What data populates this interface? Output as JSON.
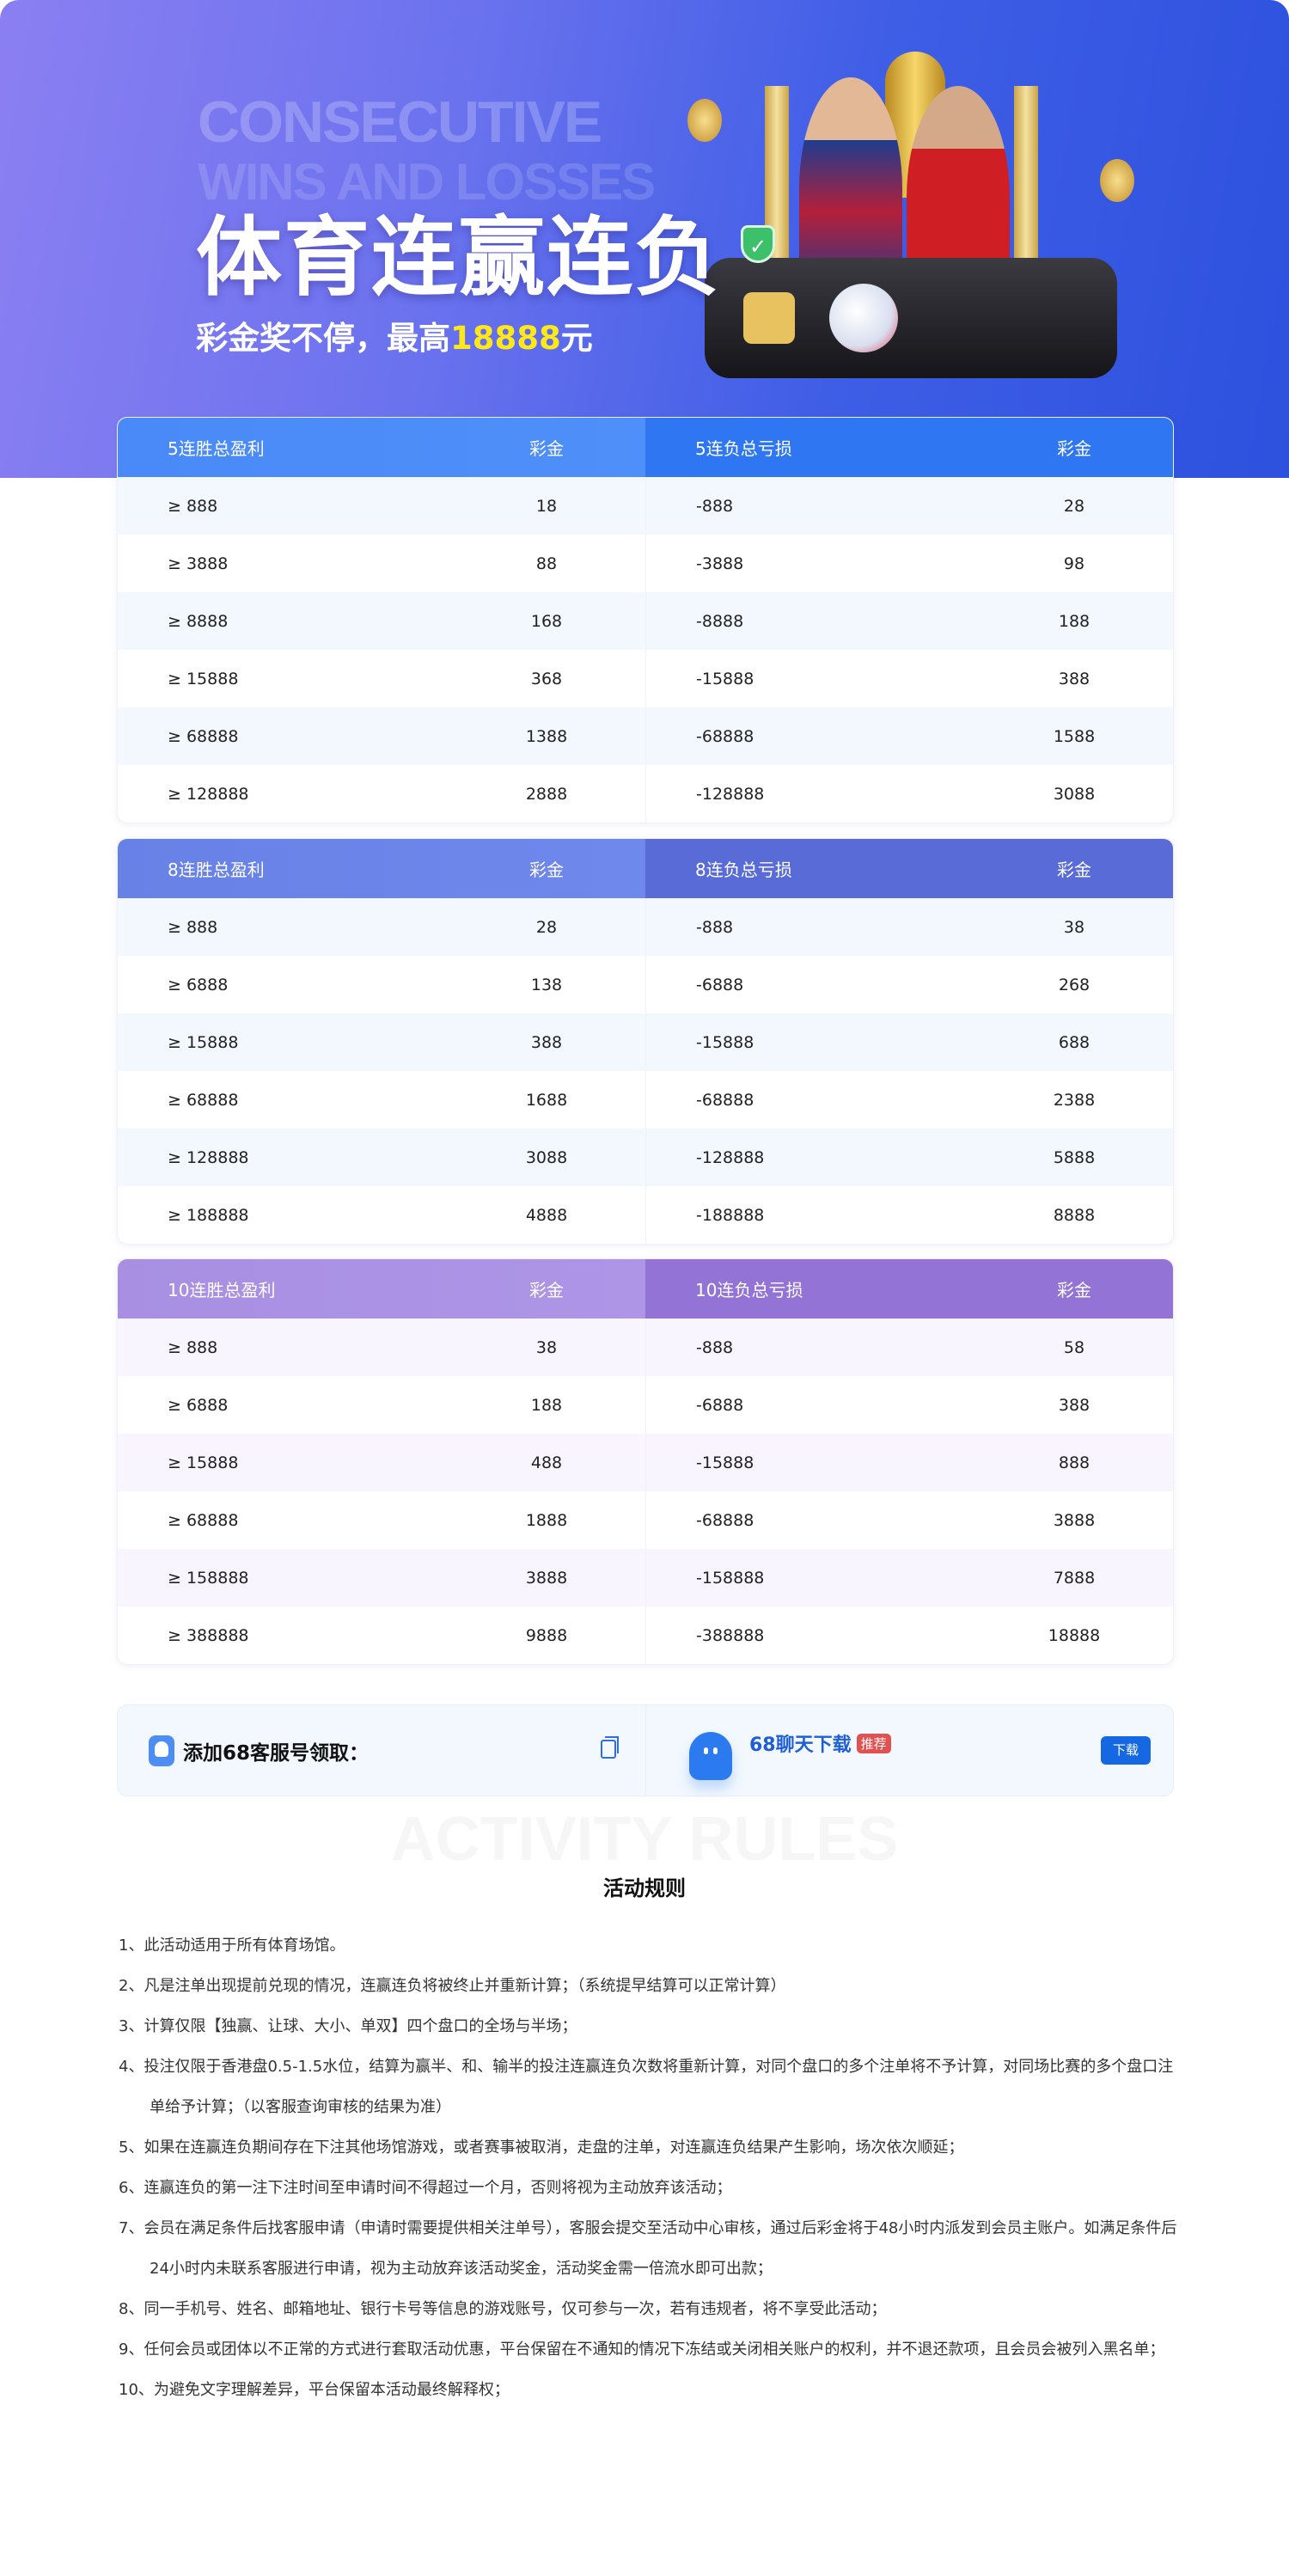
{
  "hero": {
    "en_line1": "CONSECUTIVE",
    "en_line2": "WINS AND LOSSES",
    "title": "体育连赢连负",
    "subtitle_prefix": "彩金奖不停，最高",
    "subtitle_amount": "18888",
    "subtitle_suffix": "元",
    "highlight_color": "#ffe81a"
  },
  "tables": [
    {
      "win_header": "5连胜总盈利",
      "bonus_header": "彩金",
      "loss_header": "5连负总亏损",
      "loss_bonus_header": "彩金",
      "rows": [
        {
          "win": "≥ 888",
          "win_bonus": "18",
          "loss": "-888",
          "loss_bonus": "28"
        },
        {
          "win": "≥ 3888",
          "win_bonus": "88",
          "loss": "-3888",
          "loss_bonus": "98"
        },
        {
          "win": "≥ 8888",
          "win_bonus": "168",
          "loss": "-8888",
          "loss_bonus": "188"
        },
        {
          "win": "≥ 15888",
          "win_bonus": "368",
          "loss": "-15888",
          "loss_bonus": "388"
        },
        {
          "win": "≥ 68888",
          "win_bonus": "1388",
          "loss": "-68888",
          "loss_bonus": "1588"
        },
        {
          "win": "≥ 128888",
          "win_bonus": "2888",
          "loss": "-128888",
          "loss_bonus": "3088"
        }
      ]
    },
    {
      "win_header": "8连胜总盈利",
      "bonus_header": "彩金",
      "loss_header": "8连负总亏损",
      "loss_bonus_header": "彩金",
      "rows": [
        {
          "win": "≥ 888",
          "win_bonus": "28",
          "loss": "-888",
          "loss_bonus": "38"
        },
        {
          "win": "≥ 6888",
          "win_bonus": "138",
          "loss": "-6888",
          "loss_bonus": "268"
        },
        {
          "win": "≥ 15888",
          "win_bonus": "388",
          "loss": "-15888",
          "loss_bonus": "688"
        },
        {
          "win": "≥ 68888",
          "win_bonus": "1688",
          "loss": "-68888",
          "loss_bonus": "2388"
        },
        {
          "win": "≥ 128888",
          "win_bonus": "3088",
          "loss": "-128888",
          "loss_bonus": "5888"
        },
        {
          "win": "≥ 188888",
          "win_bonus": "4888",
          "loss": "-188888",
          "loss_bonus": "8888"
        }
      ]
    },
    {
      "win_header": "10连胜总盈利",
      "bonus_header": "彩金",
      "loss_header": "10连负总亏损",
      "loss_bonus_header": "彩金",
      "rows": [
        {
          "win": "≥ 888",
          "win_bonus": "38",
          "loss": "-888",
          "loss_bonus": "58"
        },
        {
          "win": "≥ 6888",
          "win_bonus": "188",
          "loss": "-6888",
          "loss_bonus": "388"
        },
        {
          "win": "≥ 15888",
          "win_bonus": "488",
          "loss": "-15888",
          "loss_bonus": "888"
        },
        {
          "win": "≥ 68888",
          "win_bonus": "1888",
          "loss": "-68888",
          "loss_bonus": "3888"
        },
        {
          "win": "≥ 158888",
          "win_bonus": "3888",
          "loss": "-158888",
          "loss_bonus": "7888"
        },
        {
          "win": "≥ 388888",
          "win_bonus": "9888",
          "loss": "-388888",
          "loss_bonus": "18888"
        }
      ]
    }
  ],
  "contact": {
    "label": "添加68客服号领取：",
    "app_title": "68聊天下载",
    "badge": "推荐",
    "download": "下载"
  },
  "rules": {
    "watermark": "ACTIVITY RULES",
    "title": "活动规则",
    "items": [
      "1、此活动适用于所有体育场馆。",
      "2、凡是注单出现提前兑现的情况，连赢连负将被终止并重新计算；（系统提早结算可以正常计算）",
      "3、计算仅限【独赢、让球、大小、单双】四个盘口的全场与半场；",
      "4、投注仅限于香港盘0.5-1.5水位，结算为赢半、和、输半的投注连赢连负次数将重新计算，对同个盘口的多个注单将不予计算，对同场比赛的多个盘口注单给予计算；（以客服查询审核的结果为准）",
      "5、如果在连赢连负期间存在下注其他场馆游戏，或者赛事被取消，走盘的注单，对连赢连负结果产生影响，场次依次顺延；",
      "6、连赢连负的第一注下注时间至申请时间不得超过一个月，否则将视为主动放弃该活动；",
      "7、会员在满足条件后找客服申请（申请时需要提供相关注单号），客服会提交至活动中心审核，通过后彩金将于48小时内派发到会员主账户。如满足条件后24小时内未联系客服进行申请，视为主动放弃该活动奖金，活动奖金需一倍流水即可出款；",
      "8、同一手机号、姓名、邮箱地址、银行卡号等信息的游戏账号，仅可参与一次，若有违规者，将不享受此活动；",
      "9、任何会员或团体以不正常的方式进行套取活动优惠，平台保留在不通知的情况下冻结或关闭相关账户的权利，并不退还款项，且会员会被列入黑名单；",
      "10、为避免文字理解差异，平台保留本活动最终解释权；"
    ]
  }
}
